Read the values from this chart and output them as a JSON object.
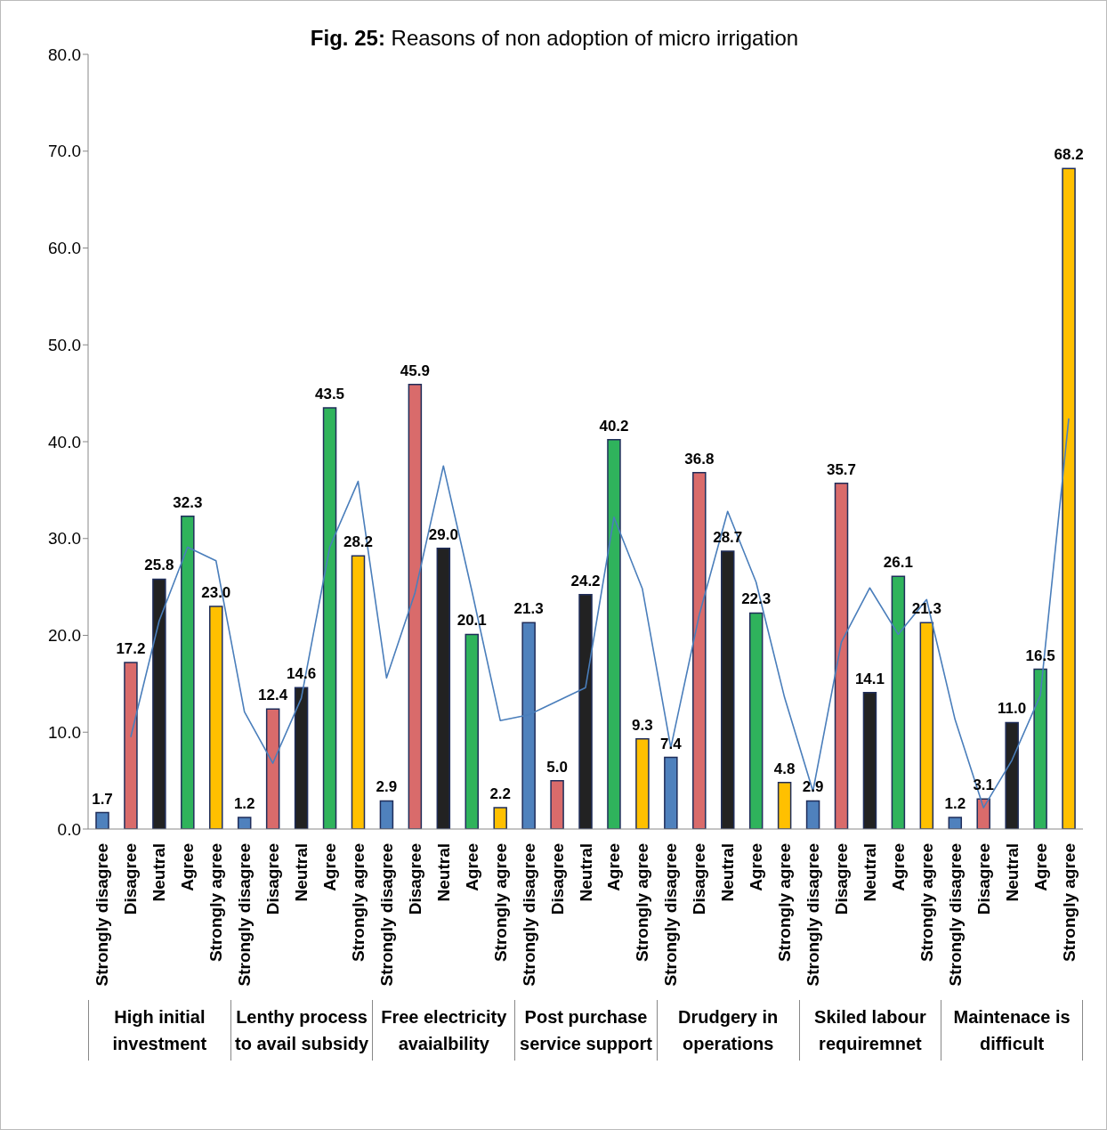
{
  "chart_data": {
    "type": "bar",
    "title": "Fig. 25:  Reasons of  non adoption of micro irrigation",
    "categories": [
      "Strongly disagree",
      "Disagree",
      "Neutral",
      "Agree",
      "Strongly agree",
      "Strongly disagree",
      "Disagree",
      "Neutral",
      "Agree",
      "Strongly agree",
      "Strongly disagree",
      "Disagree",
      "Neutral",
      "Agree",
      "Strongly agree",
      "Strongly disagree",
      "Disagree",
      "Neutral",
      "Agree",
      "Strongly agree",
      "Strongly disagree",
      "Disagree",
      "Neutral",
      "Agree",
      "Strongly agree",
      "Strongly disagree",
      "Disagree",
      "Neutral",
      "Agree",
      "Strongly agree",
      "Strongly disagree",
      "Disagree",
      "Neutral",
      "Agree",
      "Strongly agree"
    ],
    "values": [
      1.7,
      17.2,
      25.8,
      32.3,
      23.0,
      1.2,
      12.4,
      14.6,
      43.5,
      28.2,
      2.9,
      45.9,
      29.0,
      20.1,
      2.2,
      21.3,
      5.0,
      24.2,
      40.2,
      9.3,
      7.4,
      36.8,
      28.7,
      22.3,
      4.8,
      2.9,
      35.7,
      14.1,
      26.1,
      21.3,
      1.2,
      3.1,
      11.0,
      16.5,
      68.2
    ],
    "value_labels": [
      "1.7",
      "17.2",
      "25.8",
      "32.3",
      "23.0",
      "1.2",
      "12.4",
      "14.6",
      "43.5",
      "28.2",
      "2.9",
      "45.9",
      "29.0",
      "20.1",
      "2.2",
      "21.3",
      "5.0",
      "24.2",
      "40.2",
      "9.3",
      "7.4",
      "36.8",
      "28.7",
      "22.3",
      "4.8",
      "2.9",
      "35.7",
      "14.1",
      "26.1",
      "21.3",
      "1.2",
      "3.1",
      "11.0",
      "16.5",
      "68.2"
    ],
    "colors": [
      "#4f81bd",
      "#d96b6b",
      "#222222",
      "#2fb35c",
      "#ffc000",
      "#4f81bd",
      "#d96b6b",
      "#222222",
      "#2fb35c",
      "#ffc000",
      "#4f81bd",
      "#d96b6b",
      "#222222",
      "#2fb35c",
      "#ffc000",
      "#4f81bd",
      "#d96b6b",
      "#222222",
      "#2fb35c",
      "#ffc000",
      "#4f81bd",
      "#d96b6b",
      "#222222",
      "#2fb35c",
      "#ffc000",
      "#4f81bd",
      "#d96b6b",
      "#222222",
      "#2fb35c",
      "#ffc000",
      "#4f81bd",
      "#d96b6b",
      "#222222",
      "#2fb35c",
      "#ffc000"
    ],
    "series": [
      {
        "type": "line",
        "color": "#4a7ebb",
        "values": [
          null,
          9.5,
          21.5,
          29.1,
          27.7,
          12.1,
          6.8,
          13.5,
          29.1,
          35.9,
          15.6,
          24.4,
          37.5,
          24.6,
          11.2,
          11.8,
          13.2,
          14.6,
          32.2,
          24.8,
          8.4,
          22.1,
          32.8,
          25.5,
          13.6,
          3.9,
          19.3,
          24.9,
          20.1,
          23.7,
          11.3,
          2.2,
          7.1,
          13.8,
          42.4
        ]
      }
    ],
    "annotations": [
      "High initial investment",
      "Lenthy process to avail subsidy",
      "Free electricity avaialbility",
      "Post purchase service support",
      "Drudgery in operations",
      "Skiled labour requiremnet",
      "Maintenace is difficult"
    ],
    "ylim": [
      0,
      80
    ],
    "yticks": [
      {
        "value": 0,
        "label": "0.0"
      },
      {
        "value": 10,
        "label": "10.0"
      },
      {
        "value": 20,
        "label": "20.0"
      },
      {
        "value": 30,
        "label": "30.0"
      },
      {
        "value": 40,
        "label": "40.0"
      },
      {
        "value": 50,
        "label": "50.0"
      },
      {
        "value": 60,
        "label": "60.0"
      },
      {
        "value": 70,
        "label": "70.0"
      },
      {
        "value": 80,
        "label": "80.0"
      }
    ],
    "grid": false,
    "legend": false
  }
}
